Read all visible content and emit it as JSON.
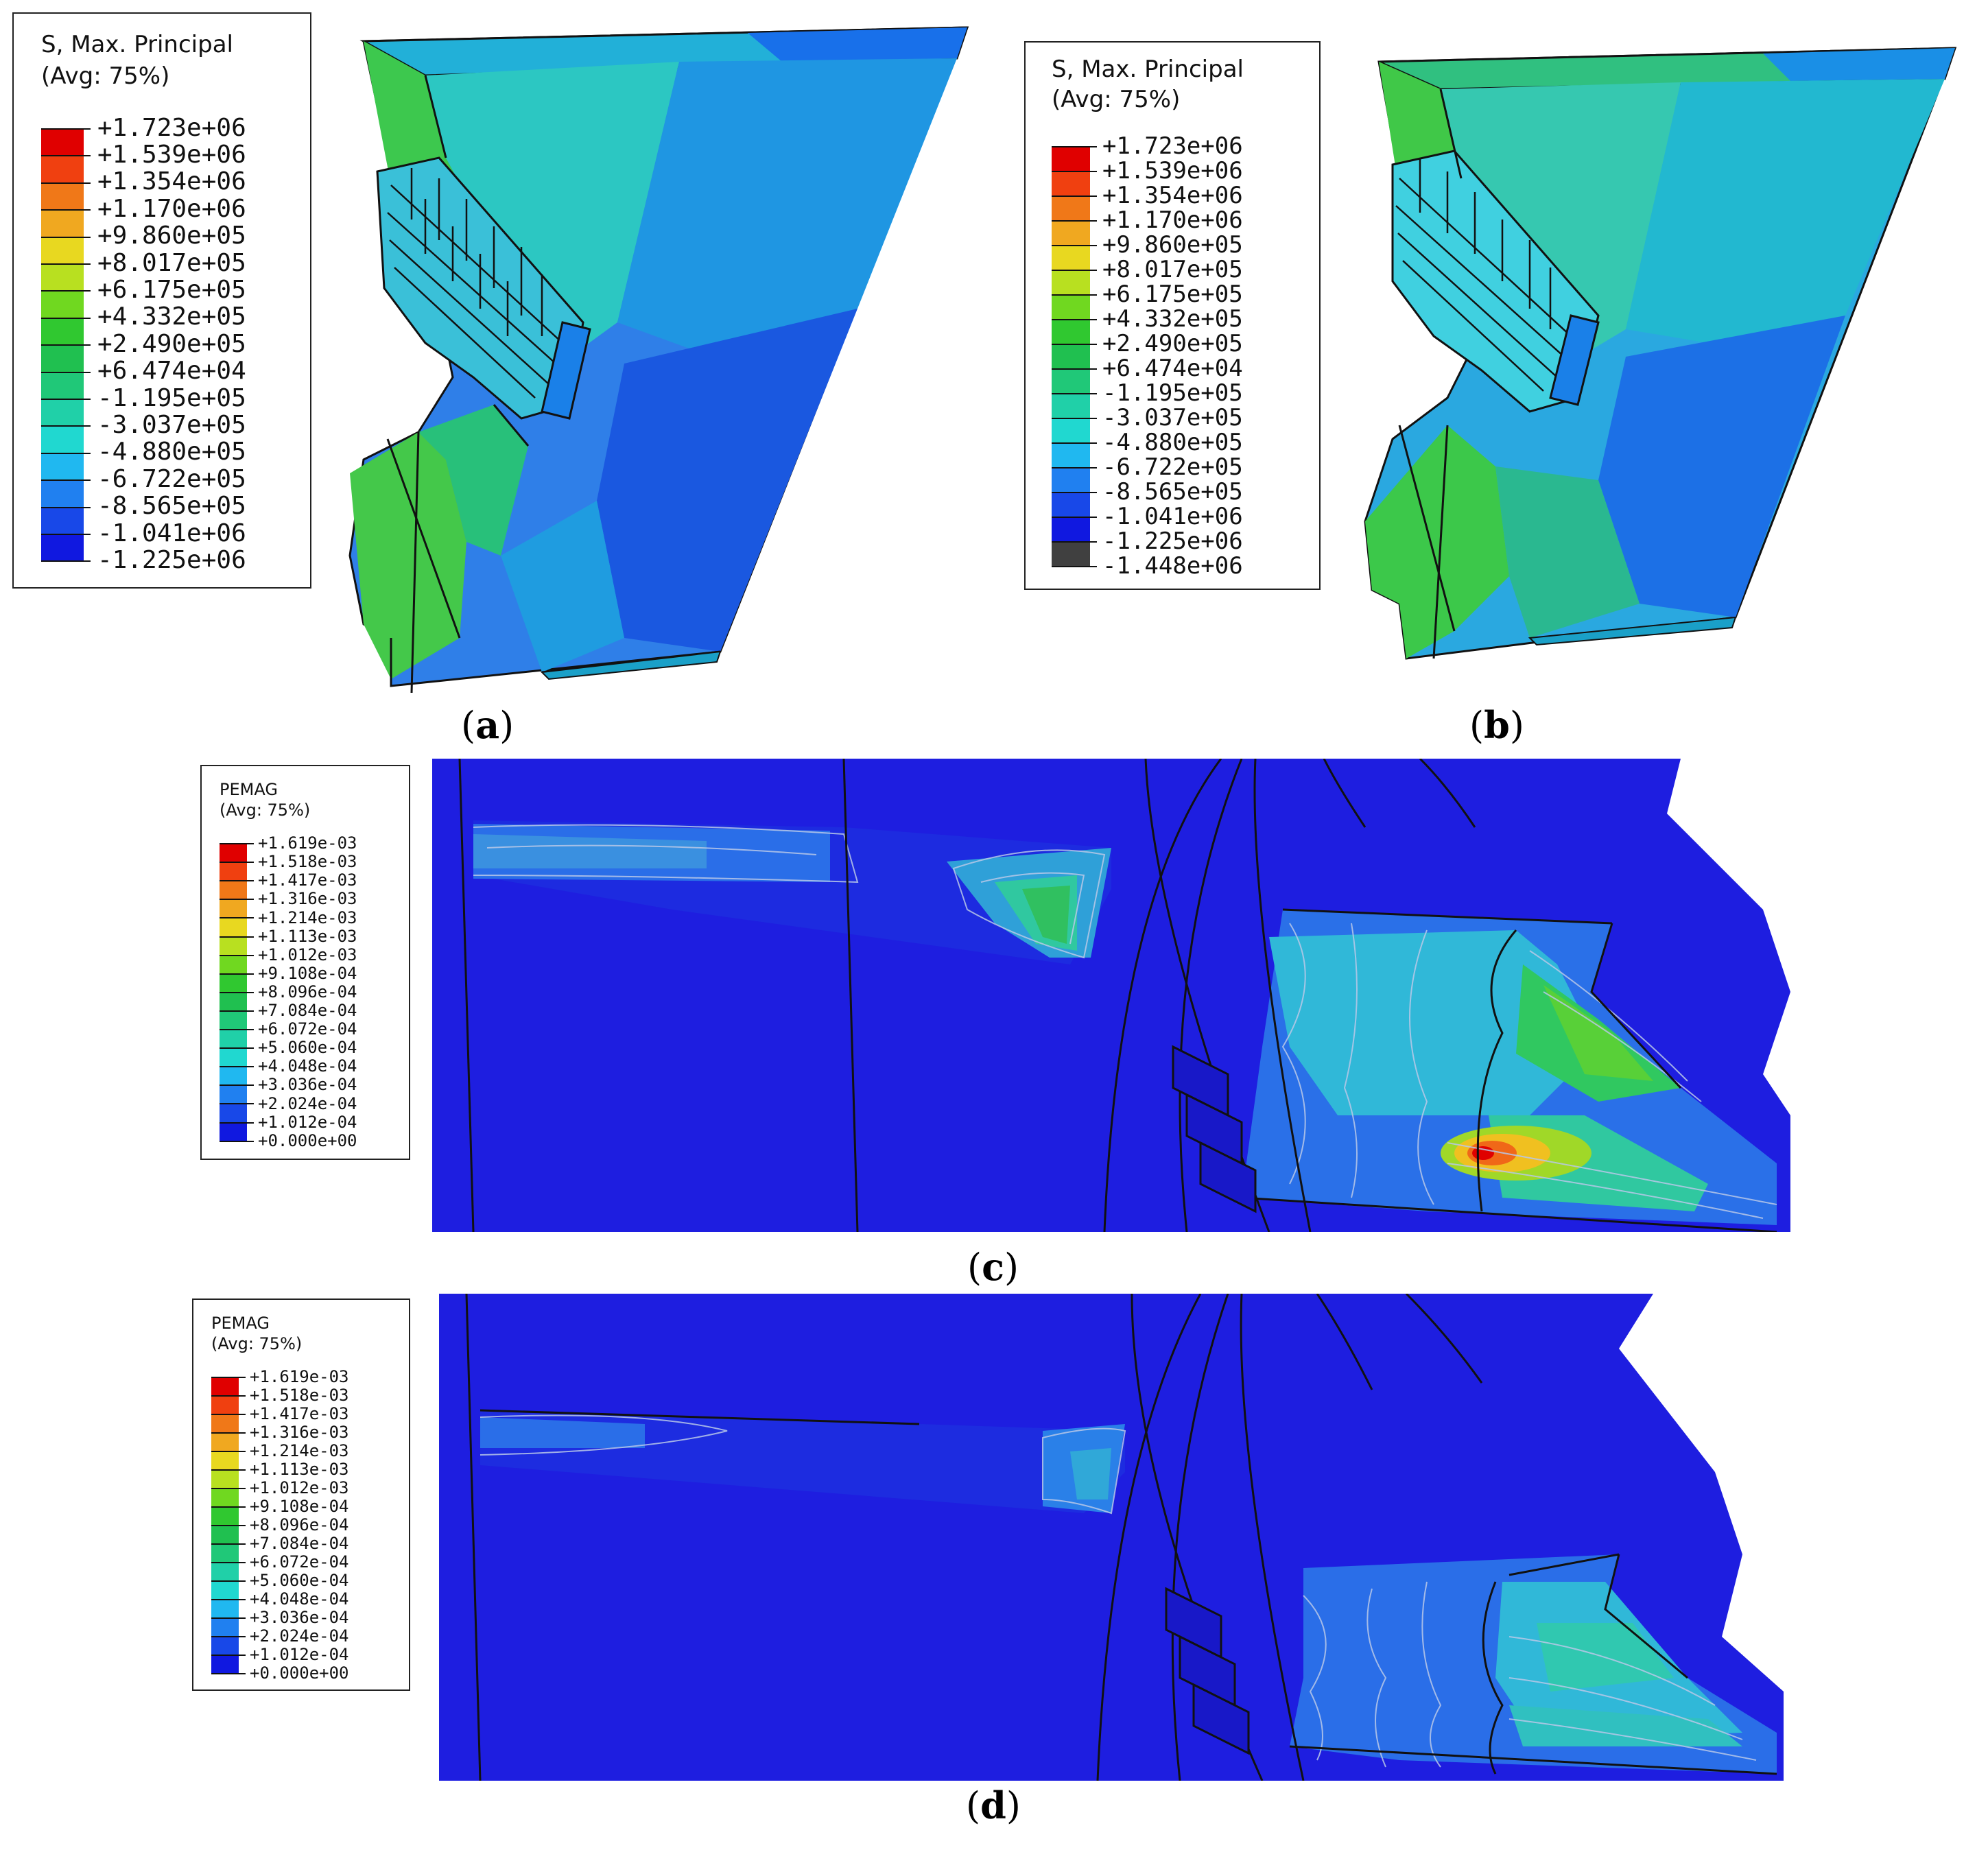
{
  "captions": {
    "a": "a",
    "b": "b",
    "c": "c",
    "d": "d"
  },
  "legend_a": {
    "title_line1": "S, Max. Principal",
    "title_line2": "(Avg: 75%)",
    "values": [
      "+1.723e+06",
      "+1.539e+06",
      "+1.354e+06",
      "+1.170e+06",
      "+9.860e+05",
      "+8.017e+05",
      "+6.175e+05",
      "+4.332e+05",
      "+2.490e+05",
      "+6.474e+04",
      "-1.195e+05",
      "-3.037e+05",
      "-4.880e+05",
      "-6.722e+05",
      "-8.565e+05",
      "-1.041e+06",
      "-1.225e+06"
    ],
    "colors": [
      "#e00000",
      "#f04010",
      "#f07818",
      "#f0a820",
      "#e8d820",
      "#b8e020",
      "#70d820",
      "#30c830",
      "#20c050",
      "#20c878",
      "#20d0a8",
      "#20d8d0",
      "#20b8f0",
      "#2080f0",
      "#1848e8",
      "#1018e0"
    ]
  },
  "legend_b": {
    "title_line1": "S, Max. Principal",
    "title_line2": "(Avg: 75%)",
    "values": [
      "+1.723e+06",
      "+1.539e+06",
      "+1.354e+06",
      "+1.170e+06",
      "+9.860e+05",
      "+8.017e+05",
      "+6.175e+05",
      "+4.332e+05",
      "+2.490e+05",
      "+6.474e+04",
      "-1.195e+05",
      "-3.037e+05",
      "-4.880e+05",
      "-6.722e+05",
      "-8.565e+05",
      "-1.041e+06",
      "-1.225e+06",
      "-1.448e+06"
    ],
    "colors": [
      "#e00000",
      "#f04010",
      "#f07818",
      "#f0a820",
      "#e8d820",
      "#b8e020",
      "#70d820",
      "#30c830",
      "#20c050",
      "#20c878",
      "#20d0a8",
      "#20d8d0",
      "#20b8f0",
      "#2080f0",
      "#1848e8",
      "#1018e0",
      "#404040"
    ]
  },
  "legend_c": {
    "title_line1": "PEMAG",
    "title_line2": "(Avg: 75%)",
    "values": [
      "+1.619e-03",
      "+1.518e-03",
      "+1.417e-03",
      "+1.316e-03",
      "+1.214e-03",
      "+1.113e-03",
      "+1.012e-03",
      "+9.108e-04",
      "+8.096e-04",
      "+7.084e-04",
      "+6.072e-04",
      "+5.060e-04",
      "+4.048e-04",
      "+3.036e-04",
      "+2.024e-04",
      "+1.012e-04",
      "+0.000e+00"
    ],
    "colors": [
      "#e00000",
      "#f04010",
      "#f07818",
      "#f0a820",
      "#e8d820",
      "#b8e020",
      "#70d820",
      "#30c830",
      "#20c050",
      "#20c878",
      "#20d0a8",
      "#20d8d0",
      "#20b8f0",
      "#2080f0",
      "#1848e8",
      "#1018e0"
    ]
  },
  "legend_d": {
    "title_line1": "PEMAG",
    "title_line2": "(Avg: 75%)",
    "values": [
      "+1.619e-03",
      "+1.518e-03",
      "+1.417e-03",
      "+1.316e-03",
      "+1.214e-03",
      "+1.113e-03",
      "+1.012e-03",
      "+9.108e-04",
      "+8.096e-04",
      "+7.084e-04",
      "+6.072e-04",
      "+5.060e-04",
      "+4.048e-04",
      "+3.036e-04",
      "+2.024e-04",
      "+1.012e-04",
      "+0.000e+00"
    ],
    "colors": [
      "#e00000",
      "#f04010",
      "#f07818",
      "#f0a820",
      "#e8d820",
      "#b8e020",
      "#70d820",
      "#30c830",
      "#20c050",
      "#20c878",
      "#20d0a8",
      "#20d8d0",
      "#20b8f0",
      "#2080f0",
      "#1848e8",
      "#1018e0"
    ]
  }
}
